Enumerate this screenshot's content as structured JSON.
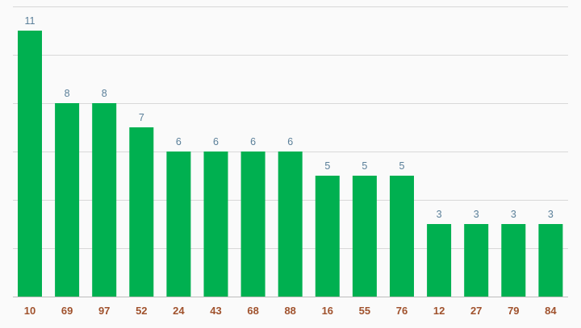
{
  "chart_data": {
    "type": "bar",
    "categories": [
      "10",
      "69",
      "97",
      "52",
      "24",
      "43",
      "68",
      "88",
      "16",
      "55",
      "76",
      "12",
      "27",
      "79",
      "84"
    ],
    "values": [
      11,
      8,
      8,
      7,
      6,
      6,
      6,
      6,
      5,
      5,
      5,
      3,
      3,
      3,
      3
    ],
    "ylim": [
      0,
      12
    ],
    "grid": true,
    "legend": "none"
  },
  "colors": {
    "bar": "#00b050",
    "value_label": "#5a7f99",
    "tick_label": "#a0522d",
    "grid": "#d8d8d8",
    "background": "#fafafa"
  }
}
